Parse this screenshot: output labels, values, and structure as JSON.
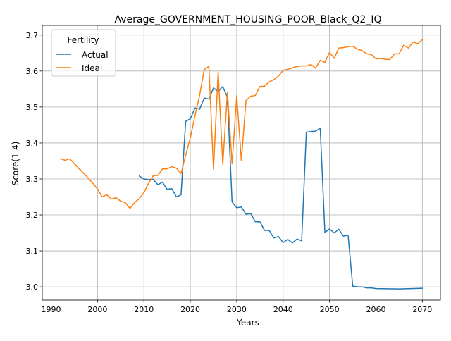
{
  "chart_data": {
    "type": "line",
    "title": "Average_GOVERNMENT_HOUSING_POOR_Black_Q2_IQ",
    "xlabel": "Years",
    "ylabel": "Score(1-4)",
    "xlim": [
      1988.1,
      2073.9
    ],
    "ylim": [
      2.963,
      3.727
    ],
    "xticks": [
      1990,
      2000,
      2010,
      2020,
      2030,
      2040,
      2050,
      2060,
      2070
    ],
    "yticks": [
      3.0,
      3.1,
      3.2,
      3.3,
      3.4,
      3.5,
      3.6,
      3.7
    ],
    "xtick_labels": [
      "1990",
      "2000",
      "2010",
      "2020",
      "2030",
      "2040",
      "2050",
      "2060",
      "2070"
    ],
    "ytick_labels": [
      "3.0",
      "3.1",
      "3.2",
      "3.3",
      "3.4",
      "3.5",
      "3.6",
      "3.7"
    ],
    "grid": true,
    "legend": {
      "title": "Fertility",
      "location": "upper-left"
    },
    "series": [
      {
        "name": "Actual",
        "color": "#1f77b4",
        "x": [
          2009,
          2010,
          2011,
          2012,
          2013,
          2014,
          2015,
          2016,
          2017,
          2018,
          2019,
          2020,
          2021,
          2022,
          2023,
          2024,
          2025,
          2026,
          2027,
          2028,
          2029,
          2030,
          2031,
          2032,
          2033,
          2034,
          2035,
          2036,
          2037,
          2038,
          2039,
          2040,
          2041,
          2042,
          2043,
          2044,
          2045,
          2046,
          2047,
          2048,
          2049,
          2050,
          2051,
          2052,
          2053,
          2054,
          2055,
          2056,
          2057,
          2058,
          2059,
          2060,
          2065,
          2070
        ],
        "y": [
          3.308,
          3.3,
          3.298,
          3.299,
          3.284,
          3.291,
          3.271,
          3.273,
          3.25,
          3.256,
          3.46,
          3.467,
          3.497,
          3.494,
          3.525,
          3.522,
          3.553,
          3.543,
          3.557,
          3.527,
          3.236,
          3.22,
          3.222,
          3.202,
          3.204,
          3.181,
          3.181,
          3.157,
          3.157,
          3.136,
          3.14,
          3.123,
          3.132,
          3.122,
          3.133,
          3.128,
          3.43,
          3.432,
          3.433,
          3.441,
          3.151,
          3.161,
          3.15,
          3.16,
          3.141,
          3.144,
          3.002,
          3.0,
          3.0,
          2.997,
          2.997,
          2.995,
          2.994,
          2.996
        ]
      },
      {
        "name": "Ideal",
        "color": "#ff7f0e",
        "x": [
          1992,
          1993,
          1994,
          1995,
          1996,
          1997,
          1998,
          1999,
          2000,
          2001,
          2002,
          2003,
          2004,
          2005,
          2006,
          2007,
          2008,
          2009,
          2010,
          2011,
          2012,
          2013,
          2014,
          2015,
          2016,
          2017,
          2018,
          2019,
          2020,
          2021,
          2022,
          2023,
          2024,
          2025,
          2026,
          2027,
          2028,
          2029,
          2030,
          2031,
          2032,
          2033,
          2034,
          2035,
          2036,
          2037,
          2038,
          2039,
          2040,
          2041,
          2042,
          2043,
          2044,
          2045,
          2046,
          2047,
          2048,
          2049,
          2050,
          2051,
          2052,
          2053,
          2054,
          2055,
          2056,
          2057,
          2058,
          2059,
          2060,
          2061,
          2062,
          2063,
          2064,
          2065,
          2066,
          2067,
          2068,
          2069,
          2070
        ],
        "y": [
          3.356,
          3.352,
          3.356,
          3.343,
          3.329,
          3.316,
          3.302,
          3.288,
          3.272,
          3.25,
          3.256,
          3.244,
          3.248,
          3.238,
          3.234,
          3.218,
          3.235,
          3.245,
          3.262,
          3.288,
          3.309,
          3.31,
          3.328,
          3.328,
          3.334,
          3.33,
          3.315,
          3.366,
          3.414,
          3.476,
          3.532,
          3.604,
          3.613,
          3.327,
          3.598,
          3.34,
          3.542,
          3.342,
          3.532,
          3.351,
          3.518,
          3.53,
          3.532,
          3.557,
          3.558,
          3.57,
          3.576,
          3.586,
          3.602,
          3.605,
          3.609,
          3.613,
          3.614,
          3.614,
          3.618,
          3.608,
          3.63,
          3.624,
          3.652,
          3.635,
          3.664,
          3.665,
          3.668,
          3.669,
          3.661,
          3.657,
          3.648,
          3.646,
          3.634,
          3.635,
          3.633,
          3.632,
          3.648,
          3.648,
          3.672,
          3.664,
          3.681,
          3.676,
          3.687
        ]
      }
    ]
  }
}
